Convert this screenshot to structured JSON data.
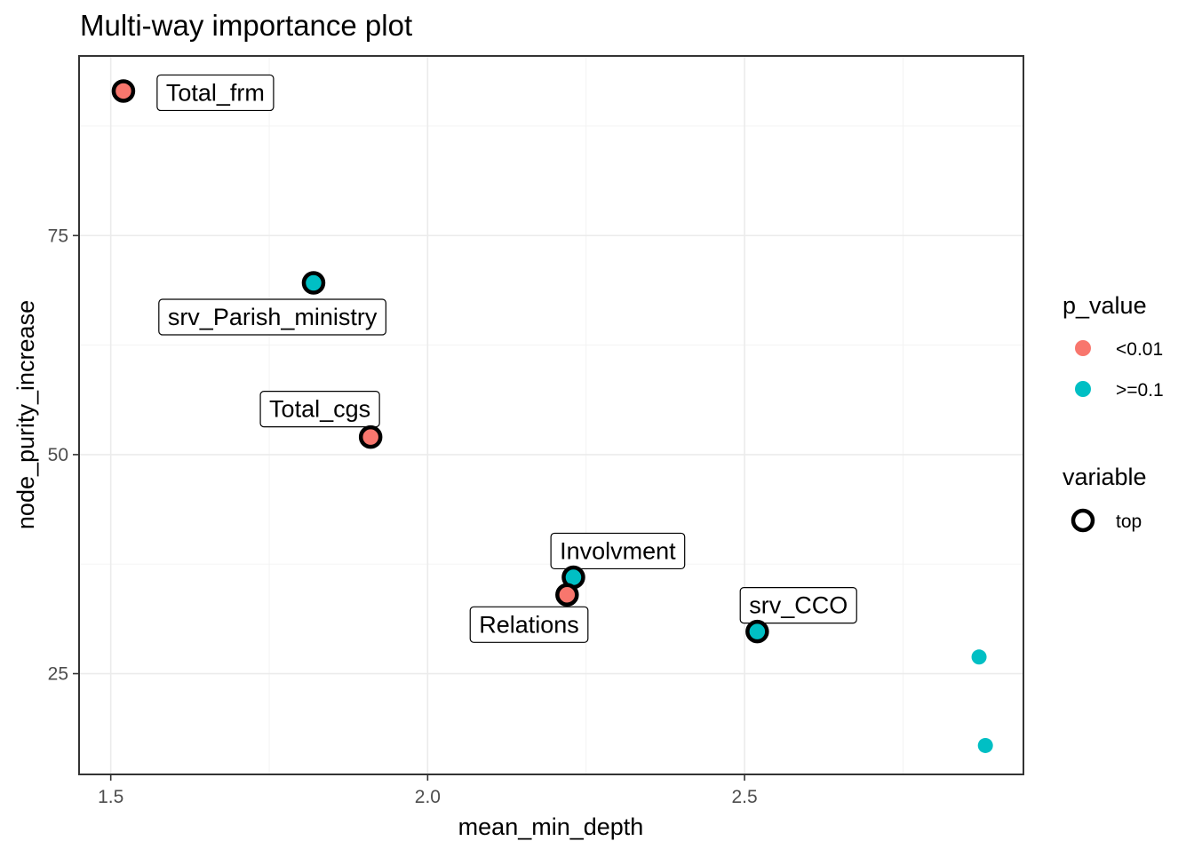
{
  "chart_data": {
    "type": "scatter",
    "title": "Multi-way importance plot",
    "xlabel": "mean_min_depth",
    "ylabel": "node_purity_increase",
    "xlim": [
      1.45,
      2.94
    ],
    "ylim": [
      13.5,
      95.5
    ],
    "x_ticks": [
      1.5,
      2.0,
      2.5
    ],
    "x_tick_labels": [
      "1.5",
      "2.0",
      "2.5"
    ],
    "x_minor": [
      1.75,
      2.25,
      2.75
    ],
    "y_ticks": [
      25,
      50,
      75
    ],
    "y_tick_labels": [
      "25",
      "50",
      "75"
    ],
    "y_minor": [
      37.5,
      62.5,
      87.5
    ],
    "grid": true,
    "colors": {
      "<0.01": "#F8766D",
      ">=0.1": "#00BFC4"
    },
    "points": [
      {
        "x": 1.52,
        "y": 91.5,
        "p_value": "<0.01",
        "top": true,
        "label": "Total_frm",
        "label_x": 1.665,
        "label_y": 91.3
      },
      {
        "x": 1.82,
        "y": 69.6,
        "p_value": ">=0.1",
        "top": true,
        "label": "srv_Parish_ministry",
        "label_x": 1.755,
        "label_y": 65.7
      },
      {
        "x": 1.91,
        "y": 52.0,
        "p_value": "<0.01",
        "top": true,
        "label": "Total_cgs",
        "label_x": 1.83,
        "label_y": 55.2
      },
      {
        "x": 2.23,
        "y": 36.0,
        "p_value": ">=0.1",
        "top": true,
        "label": "Involvment",
        "label_x": 2.3,
        "label_y": 39.0
      },
      {
        "x": 2.22,
        "y": 34.0,
        "p_value": "<0.01",
        "top": true,
        "label": "Relations",
        "label_x": 2.16,
        "label_y": 30.6
      },
      {
        "x": 2.52,
        "y": 29.8,
        "p_value": ">=0.1",
        "top": true,
        "label": "srv_CCO",
        "label_x": 2.585,
        "label_y": 32.8
      },
      {
        "x": 2.87,
        "y": 26.9,
        "p_value": ">=0.1",
        "top": false,
        "label": ""
      },
      {
        "x": 2.88,
        "y": 16.8,
        "p_value": ">=0.1",
        "top": false,
        "label": ""
      }
    ],
    "legend": {
      "placement": "right",
      "color_title": "p_value",
      "color_entries": [
        {
          "label": "<0.01",
          "color": "#F8766D"
        },
        {
          "label": ">=0.1",
          "color": "#00BFC4"
        }
      ],
      "shape_title": "variable",
      "shape_entries": [
        {
          "label": "top"
        }
      ]
    }
  }
}
